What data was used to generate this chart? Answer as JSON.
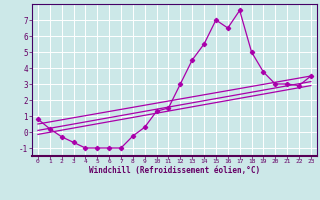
{
  "xlabel": "Windchill (Refroidissement éolien,°C)",
  "bg_color": "#cce8e8",
  "grid_color": "#ffffff",
  "line_color": "#aa00aa",
  "spine_color": "#440066",
  "label_color": "#660066",
  "xlim": [
    -0.5,
    23.5
  ],
  "ylim": [
    -1.5,
    8.0
  ],
  "xticks": [
    0,
    1,
    2,
    3,
    4,
    5,
    6,
    7,
    8,
    9,
    10,
    11,
    12,
    13,
    14,
    15,
    16,
    17,
    18,
    19,
    20,
    21,
    22,
    23
  ],
  "yticks": [
    -1,
    0,
    1,
    2,
    3,
    4,
    5,
    6,
    7
  ],
  "series1_x": [
    0,
    1,
    2,
    3,
    4,
    5,
    6,
    7,
    8,
    9,
    10,
    11,
    12,
    13,
    14,
    15,
    16,
    17,
    18,
    19,
    20,
    21,
    22,
    23
  ],
  "series1_y": [
    0.8,
    0.2,
    -0.3,
    -0.65,
    -1.0,
    -1.0,
    -1.0,
    -1.0,
    -0.25,
    0.3,
    1.3,
    1.5,
    3.0,
    4.5,
    5.5,
    7.0,
    6.5,
    7.6,
    5.0,
    3.75,
    3.0,
    3.0,
    2.9,
    3.5
  ],
  "series2_x": [
    0,
    23
  ],
  "series2_y": [
    0.5,
    3.5
  ],
  "series3_x": [
    0,
    23
  ],
  "series3_y": [
    0.1,
    3.15
  ],
  "series4_x": [
    0,
    23
  ],
  "series4_y": [
    -0.15,
    2.9
  ]
}
